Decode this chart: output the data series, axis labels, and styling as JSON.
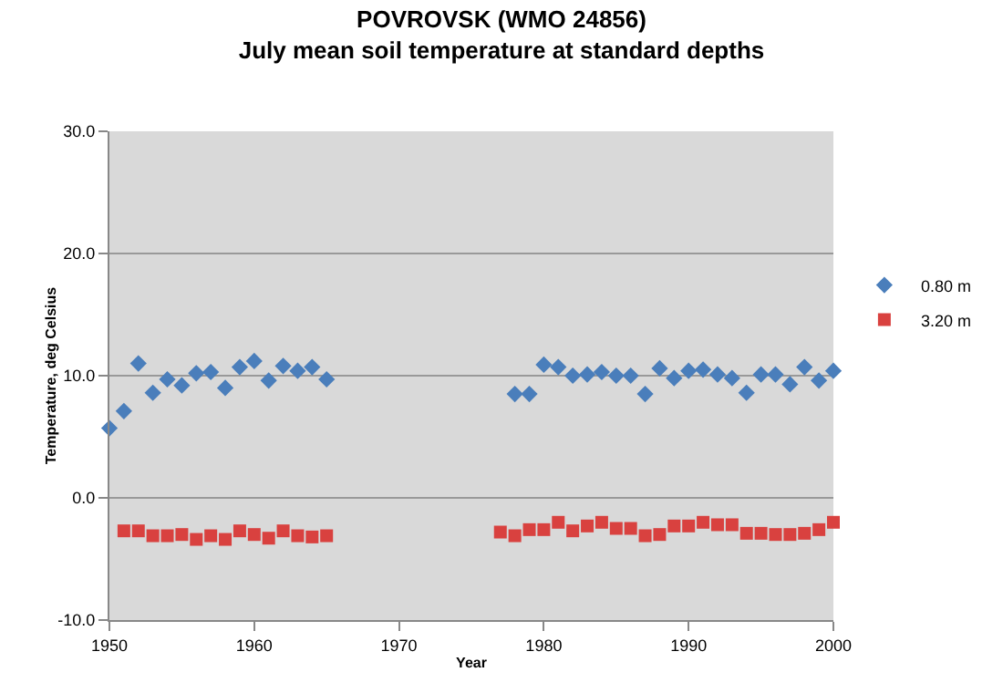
{
  "chart_data": {
    "type": "scatter",
    "title": "POVROVSK (WMO 24856)",
    "subtitle": "July mean soil temperature at standard depths",
    "xlabel": "Year",
    "ylabel": "Temperature, deg Celsius",
    "xlim": [
      1950,
      2000
    ],
    "xticks": [
      1950,
      1960,
      1970,
      1980,
      1990,
      2000
    ],
    "ylim": [
      -10,
      30
    ],
    "yticks": [
      {
        "value": -10,
        "label": "-10.0"
      },
      {
        "value": 0,
        "label": "0.0"
      },
      {
        "value": 10,
        "label": "10.0"
      },
      {
        "value": 20,
        "label": "20.0"
      },
      {
        "value": 30,
        "label": "30.0"
      }
    ],
    "grid": "y",
    "legend": "right",
    "series": [
      {
        "name": "0.80 m",
        "color": "#4a7ebb",
        "marker": "diamond",
        "x": [
          1950,
          1951,
          1952,
          1953,
          1954,
          1955,
          1956,
          1957,
          1958,
          1959,
          1960,
          1961,
          1962,
          1963,
          1964,
          1965,
          1978,
          1979,
          1980,
          1981,
          1982,
          1983,
          1984,
          1985,
          1986,
          1987,
          1988,
          1989,
          1990,
          1991,
          1992,
          1993,
          1994,
          1995,
          1996,
          1997,
          1998,
          1999,
          2000
        ],
        "values": [
          5.7,
          7.1,
          11.0,
          8.6,
          9.7,
          9.2,
          10.2,
          10.3,
          9.0,
          10.7,
          11.2,
          9.6,
          10.8,
          10.4,
          10.7,
          9.7,
          8.5,
          8.5,
          10.9,
          10.7,
          10.0,
          10.1,
          10.3,
          10.0,
          10.0,
          8.5,
          10.6,
          9.8,
          10.4,
          10.5,
          10.1,
          9.8,
          8.6,
          10.1,
          10.1,
          9.3,
          10.7,
          9.6,
          10.4
        ]
      },
      {
        "name": "3.20 m",
        "color": "#d9413f",
        "marker": "square",
        "x": [
          1951,
          1952,
          1953,
          1954,
          1955,
          1956,
          1957,
          1958,
          1959,
          1960,
          1961,
          1962,
          1963,
          1964,
          1965,
          1977,
          1978,
          1979,
          1980,
          1981,
          1982,
          1983,
          1984,
          1985,
          1986,
          1987,
          1988,
          1989,
          1990,
          1991,
          1992,
          1993,
          1994,
          1995,
          1996,
          1997,
          1998,
          1999,
          2000
        ],
        "values": [
          -2.7,
          -2.7,
          -3.1,
          -3.1,
          -3.0,
          -3.4,
          -3.1,
          -3.4,
          -2.7,
          -3.0,
          -3.3,
          -2.7,
          -3.1,
          -3.2,
          -3.1,
          -2.8,
          -3.1,
          -2.6,
          -2.6,
          -2.0,
          -2.7,
          -2.3,
          -2.0,
          -2.5,
          -2.5,
          -3.1,
          -3.0,
          -2.3,
          -2.3,
          -2.0,
          -2.2,
          -2.2,
          -2.9,
          -2.9,
          -3.0,
          -3.0,
          -2.9,
          -2.6,
          -2.0
        ]
      }
    ]
  }
}
